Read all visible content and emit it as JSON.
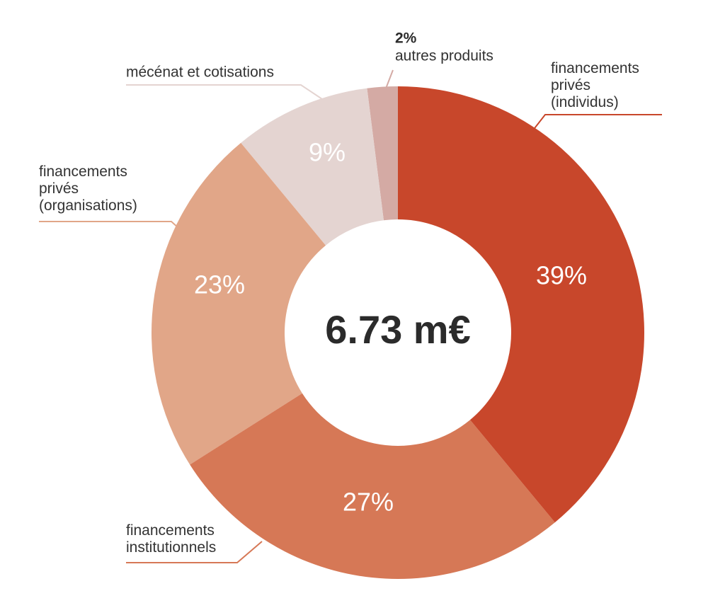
{
  "chart_data": {
    "type": "donut",
    "center_label": "6.73 m€",
    "categories": [
      "financements\nprivés\n(individus)",
      "financements\ninstitutionnels",
      "financements\nprivés\n(organisations)",
      "mécénat et cotisations",
      "autres produits"
    ],
    "values": [
      39,
      27,
      23,
      9,
      2
    ],
    "value_labels": [
      "39%",
      "27%",
      "23%",
      "9%",
      "2%"
    ],
    "colors": [
      "#c8472b",
      "#d67856",
      "#e1a688",
      "#e4d4d1",
      "#d4aaa4"
    ]
  }
}
